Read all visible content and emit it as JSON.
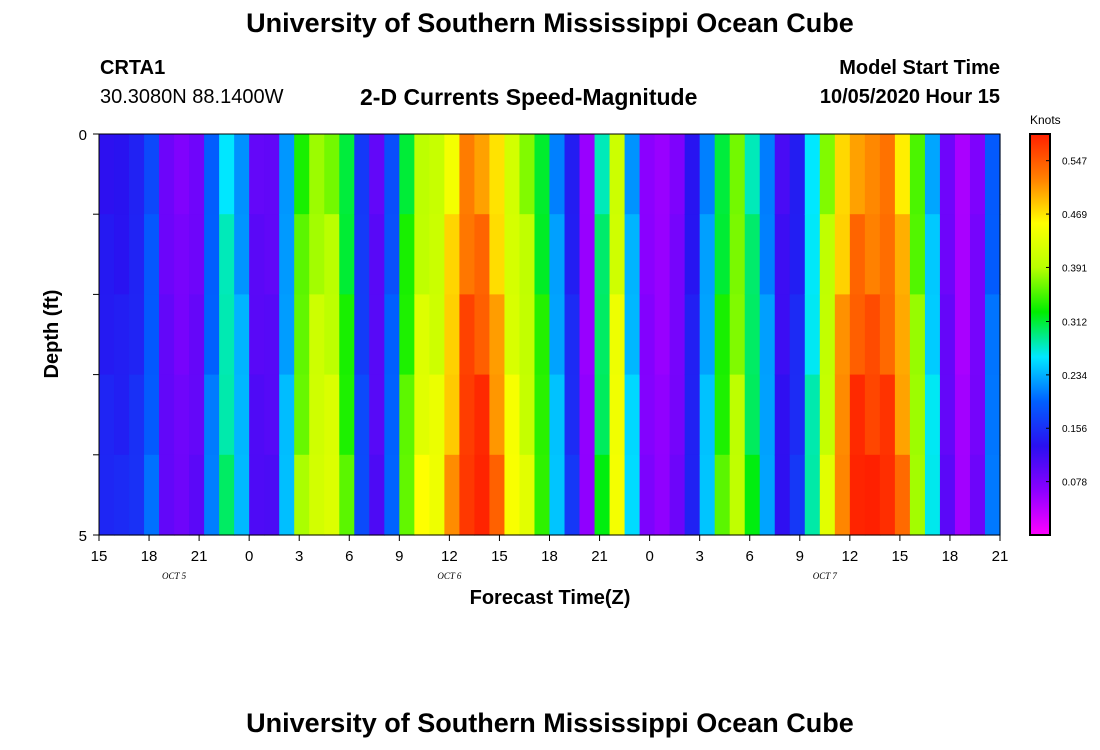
{
  "header": {
    "title_top": "University of Southern Mississippi Ocean Cube",
    "title_bottom": "University of Southern Mississippi Ocean Cube",
    "station": "CRTA1",
    "coords": "30.3080N 88.1400W",
    "start_label": "Model Start Time",
    "start_value": "10/05/2020 Hour 15"
  },
  "colors": {
    "scale": [
      "#ff00ff",
      "#8c00ff",
      "#2a10f0",
      "#0060ff",
      "#00e8ff",
      "#00ee00",
      "#b8ff00",
      "#ffff00",
      "#ff8000",
      "#ff2000"
    ]
  },
  "chart_data": {
    "type": "heatmap",
    "title": "2-D Currents Speed-Magnitude",
    "xlabel": "Forecast Time(Z)",
    "ylabel": "Depth (ft)",
    "y_ticks": [
      "0",
      "5"
    ],
    "ylim": [
      0,
      5
    ],
    "x_range_hours": [
      0,
      54
    ],
    "x_ticks": [
      "15",
      "18",
      "21",
      "0",
      "3",
      "6",
      "9",
      "12",
      "15",
      "18",
      "21",
      "0",
      "3",
      "6",
      "9",
      "12",
      "15",
      "18",
      "21"
    ],
    "day_labels": [
      {
        "label": "OCT 5",
        "hour": 4.5
      },
      {
        "label": "OCT 6",
        "hour": 21
      },
      {
        "label": "OCT 7",
        "hour": 43.5
      }
    ],
    "colorbar": {
      "units": "Knots",
      "min": 0.0,
      "max": 0.586,
      "ticks": [
        "0.547",
        "0.469",
        "0.391",
        "0.312",
        "0.234",
        "0.156",
        "0.078"
      ]
    },
    "speed_by_hour_knots": [
      0.14,
      0.14,
      0.15,
      0.19,
      0.09,
      0.08,
      0.09,
      0.2,
      0.28,
      0.23,
      0.1,
      0.1,
      0.23,
      0.36,
      0.4,
      0.4,
      0.33,
      0.17,
      0.1,
      0.19,
      0.34,
      0.42,
      0.42,
      0.48,
      0.55,
      0.55,
      0.5,
      0.43,
      0.4,
      0.33,
      0.23,
      0.15,
      0.06,
      0.3,
      0.43,
      0.24,
      0.07,
      0.06,
      0.08,
      0.14,
      0.23,
      0.33,
      0.38,
      0.3,
      0.22,
      0.12,
      0.15,
      0.27,
      0.4,
      0.5,
      0.55,
      0.55,
      0.55,
      0.5,
      0.37,
      0.25,
      0.09,
      0.05,
      0.08,
      0.2
    ]
  }
}
